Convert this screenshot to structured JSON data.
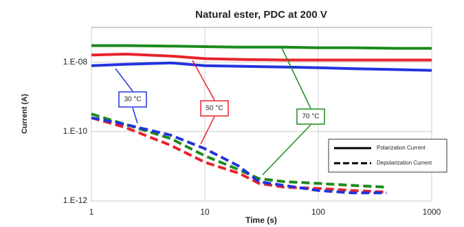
{
  "chart_data": {
    "type": "line",
    "title": "Natural ester, PDC at 200 V",
    "xlabel": "Time (s)",
    "ylabel": "Current (A)",
    "xlog": true,
    "ylog": true,
    "grid": true,
    "xlim": [
      1,
      1000
    ],
    "xticks": [
      1,
      10,
      100,
      1000
    ],
    "ylim": [
      1e-12,
      1e-07
    ],
    "yticks": [
      {
        "value": 1e-08,
        "label": "1.E-08"
      },
      {
        "value": 1e-10,
        "label": "1.E-10"
      },
      {
        "value": 1e-12,
        "label": "1.E-12"
      }
    ],
    "series": [
      {
        "color": "#1a8a1a",
        "dash": false,
        "x": [
          1,
          2,
          5,
          10,
          20,
          50,
          100,
          200,
          500,
          1000
        ],
        "values": [
          3e-08,
          3e-08,
          2.9e-08,
          2.8e-08,
          2.7e-08,
          2.7e-08,
          2.6e-08,
          2.6e-08,
          2.5e-08,
          2.5e-08
        ]
      },
      {
        "color": "#e8222a",
        "dash": false,
        "x": [
          1,
          2,
          5,
          10,
          20,
          50,
          100,
          200,
          500,
          1000
        ],
        "values": [
          1.6e-08,
          1.7e-08,
          1.5e-08,
          1.26e-08,
          1.2e-08,
          1.15e-08,
          1.15e-08,
          1.15e-08,
          1.15e-08,
          1.15e-08
        ]
      },
      {
        "color": "#2233dd",
        "dash": false,
        "x": [
          1,
          2,
          5,
          10,
          20,
          50,
          100,
          200,
          500,
          1000
        ],
        "values": [
          7.9e-09,
          8.7e-09,
          9.5e-09,
          7.9e-09,
          7.6e-09,
          7.2e-09,
          6.9e-09,
          6.5e-09,
          6.1e-09,
          5.8e-09
        ]
      },
      {
        "color": "#1a8a1a",
        "dash": true,
        "x": [
          1,
          2,
          5,
          10,
          20,
          30,
          50,
          100,
          200,
          400
        ],
        "values": [
          3.2e-10,
          1.6e-10,
          6.3e-11,
          2e-11,
          7.9e-12,
          4.4e-12,
          3.6e-12,
          3.2e-12,
          2.8e-12,
          2.5e-12
        ]
      },
      {
        "color": "#e8222a",
        "dash": true,
        "x": [
          1,
          2,
          5,
          10,
          20,
          30,
          50,
          100,
          200,
          400
        ],
        "values": [
          2.5e-10,
          1.3e-10,
          4e-11,
          1.3e-11,
          6.3e-12,
          3.2e-12,
          2.5e-12,
          2.3e-12,
          2e-12,
          1.8e-12
        ]
      },
      {
        "color": "#2233dd",
        "dash": true,
        "x": [
          1,
          2,
          5,
          10,
          20,
          30,
          50,
          100,
          200,
          400
        ],
        "values": [
          2.5e-10,
          1.6e-10,
          7.9e-11,
          3.2e-11,
          1e-11,
          3.6e-12,
          2.8e-12,
          2e-12,
          1.7e-12,
          1.7e-12
        ]
      }
    ],
    "annotations": [
      {
        "text": "30 °C",
        "color": "#2233dd"
      },
      {
        "text": "50 °C",
        "color": "#e8222a"
      },
      {
        "text": "70 °C",
        "color": "#1a8a1a"
      }
    ],
    "legend": [
      {
        "label": "Polarization Current",
        "dash": false
      },
      {
        "label": "Depolarization Current",
        "dash": true
      }
    ]
  }
}
